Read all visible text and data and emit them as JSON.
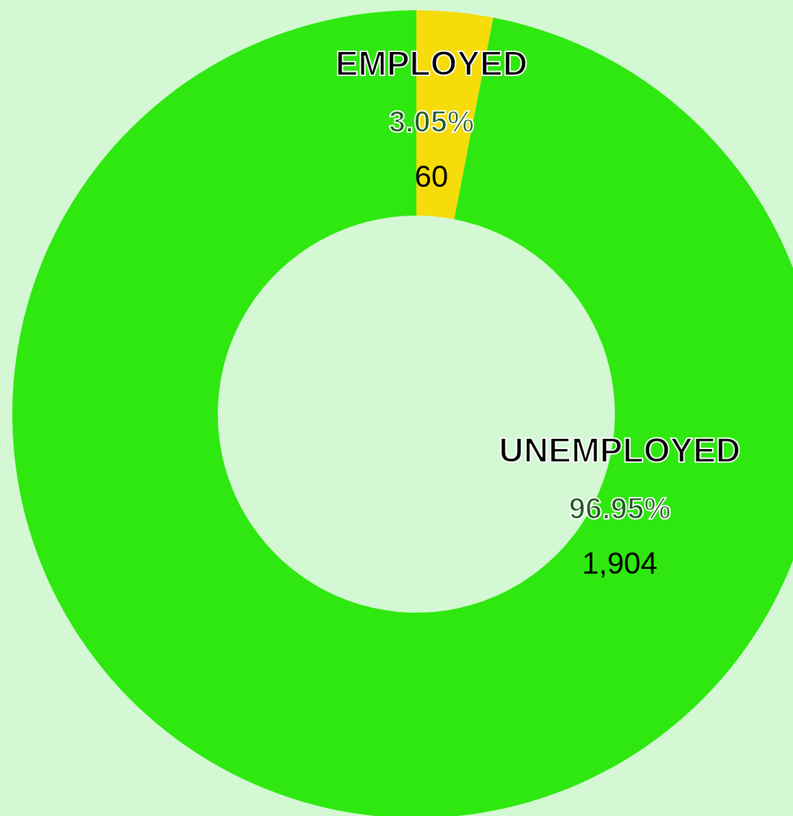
{
  "chart_data": {
    "type": "donut",
    "categories": [
      "EMPLOYED",
      "UNEMPLOYED"
    ],
    "values": [
      3.05,
      96.95
    ],
    "colors": [
      "#f5dc0a",
      "#2ee80f"
    ],
    "value_labels": [
      "3.05%",
      "96.95%"
    ],
    "annotations": [
      "60",
      "1,904"
    ]
  }
}
